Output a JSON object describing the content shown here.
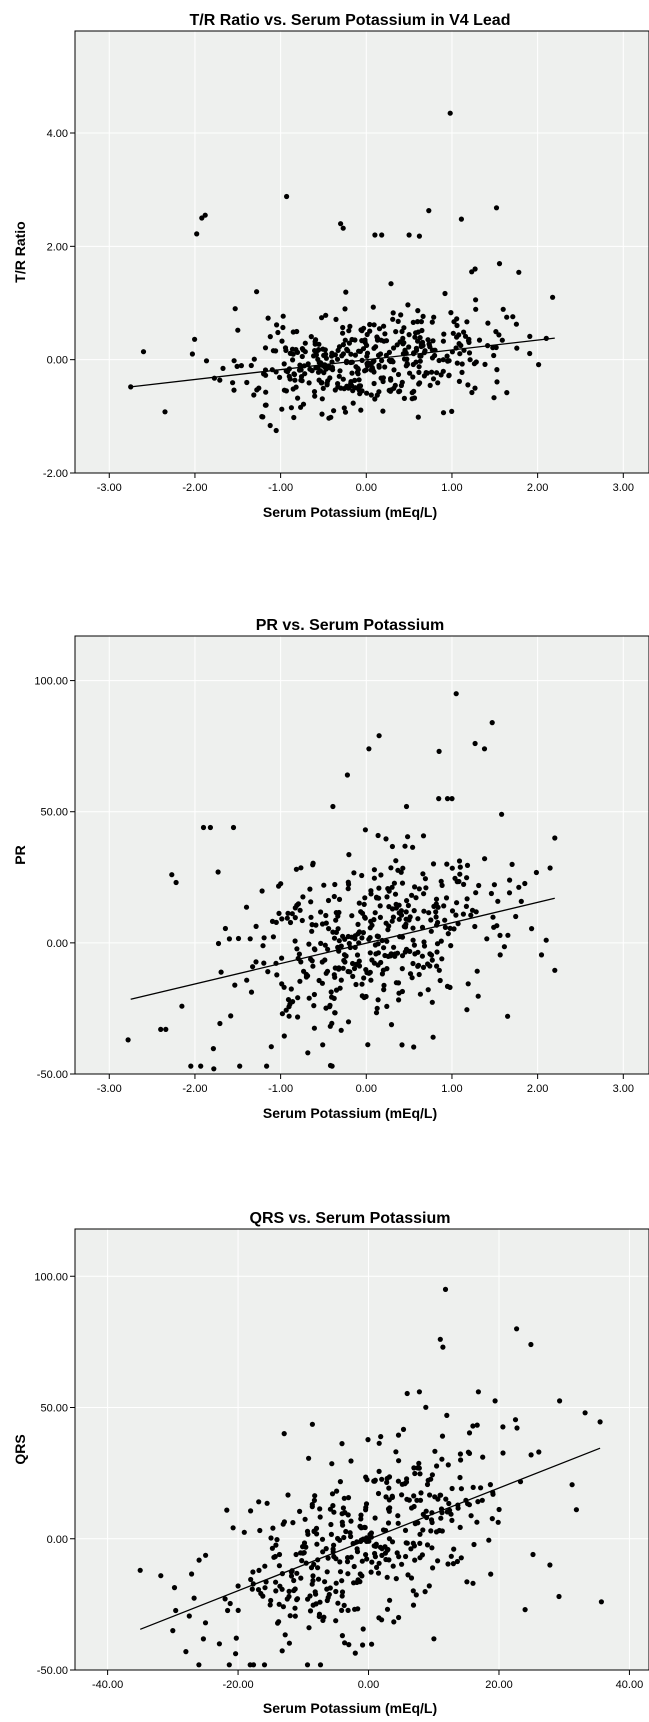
{
  "chart_data": [
    {
      "type": "scatter",
      "title": "T/R Ratio vs. Serum Potassium in V4 Lead",
      "xlabel": "Serum Potassium (mEq/L)",
      "ylabel": "T/R Ratio",
      "xlim": [
        -3.4,
        3.3
      ],
      "ylim": [
        -2.0,
        5.8
      ],
      "x_ticks": [
        -3,
        -2,
        -1,
        0,
        1,
        2,
        3
      ],
      "x_tick_labels": [
        "-3.00",
        "-2.00",
        "-1.00",
        "0.00",
        "1.00",
        "2.00",
        "3.00"
      ],
      "y_ticks": [
        -2,
        0,
        2,
        4
      ],
      "y_tick_labels": [
        "-2.00",
        "0.00",
        "2.00",
        "4.00"
      ],
      "grid": true,
      "fit_line": {
        "x": [
          -2.75,
          2.2
        ],
        "y": [
          -0.48,
          0.38
        ]
      },
      "seed": 11,
      "n_points": 430,
      "sx": 0.75,
      "slope": 0.17,
      "intercept": -0.02,
      "noise": 0.42,
      "special_points": [
        [
          0.98,
          4.35
        ],
        [
          -0.93,
          2.88
        ],
        [
          1.52,
          2.68
        ],
        [
          -1.88,
          2.55
        ],
        [
          -1.92,
          2.5
        ],
        [
          -1.98,
          2.22
        ],
        [
          0.73,
          2.63
        ],
        [
          -0.3,
          2.4
        ],
        [
          -0.27,
          2.32
        ],
        [
          0.1,
          2.2
        ],
        [
          0.18,
          2.2
        ],
        [
          0.5,
          2.2
        ],
        [
          0.62,
          2.18
        ],
        [
          1.11,
          2.48
        ],
        [
          1.23,
          1.55
        ],
        [
          1.27,
          1.6
        ],
        [
          -2.03,
          0.1
        ],
        [
          -2.35,
          -0.92
        ],
        [
          -2.75,
          -0.48
        ],
        [
          -1.53,
          0.9
        ],
        [
          -1.28,
          1.2
        ],
        [
          -1.5,
          0.52
        ]
      ],
      "x_clip": [
        -2.75,
        2.2
      ],
      "y_clip": [
        -1.25,
        2.3
      ]
    },
    {
      "type": "scatter",
      "title": "PR vs. Serum Potassium",
      "xlabel": "Serum Potassium (mEq/L)",
      "ylabel": "PR",
      "xlim": [
        -3.4,
        3.3
      ],
      "ylim": [
        -50.0,
        117.0
      ],
      "x_ticks": [
        -3,
        -2,
        -1,
        0,
        1,
        2,
        3
      ],
      "x_tick_labels": [
        "-3.00",
        "-2.00",
        "-1.00",
        "0.00",
        "1.00",
        "2.00",
        "3.00"
      ],
      "y_ticks": [
        -50,
        0,
        50,
        100
      ],
      "y_tick_labels": [
        "-50.00",
        "0.00",
        "50.00",
        "100.00"
      ],
      "grid": true,
      "fit_line": {
        "x": [
          -2.75,
          2.2
        ],
        "y": [
          -21.5,
          17.0
        ]
      },
      "seed": 23,
      "n_points": 430,
      "sx": 0.75,
      "slope": 7.8,
      "intercept": -0.1,
      "noise": 17.0,
      "special_points": [
        [
          1.05,
          95.0
        ],
        [
          1.47,
          84.0
        ],
        [
          1.27,
          76.0
        ],
        [
          1.38,
          74.0
        ],
        [
          0.85,
          73.0
        ],
        [
          0.03,
          74.0
        ],
        [
          0.15,
          79.0
        ],
        [
          -0.22,
          64.0
        ],
        [
          1.0,
          55.0
        ],
        [
          -0.39,
          52.0
        ],
        [
          0.47,
          52.0
        ],
        [
          1.58,
          49.0
        ],
        [
          -1.9,
          44.0
        ],
        [
          -1.82,
          44.0
        ],
        [
          -1.55,
          44.0
        ],
        [
          -2.27,
          26.0
        ],
        [
          -2.22,
          23.0
        ],
        [
          -2.78,
          -37.0
        ],
        [
          -1.78,
          -48.0
        ],
        [
          -2.4,
          -33.0
        ],
        [
          -2.34,
          -33.0
        ],
        [
          2.2,
          40.0
        ],
        [
          2.1,
          1.0
        ],
        [
          1.65,
          -28.0
        ],
        [
          -1.73,
          27.0
        ]
      ],
      "x_clip": [
        -2.75,
        2.2
      ],
      "y_clip": [
        -47.0,
        55.0
      ]
    },
    {
      "type": "scatter",
      "title": "QRS vs. Serum Potassium",
      "xlabel": "Serum Potassium (mEq/L)",
      "ylabel": "QRS",
      "xlim": [
        -45.0,
        43.0
      ],
      "ylim": [
        -50.0,
        118.0
      ],
      "x_ticks": [
        -40,
        -20,
        0,
        20,
        40
      ],
      "x_tick_labels": [
        "-40.00",
        "-20.00",
        "0.00",
        "20.00",
        "40.00"
      ],
      "y_ticks": [
        -50,
        0,
        50,
        100
      ],
      "y_tick_labels": [
        "-50.00",
        "0.00",
        "50.00",
        "100.00"
      ],
      "grid": true,
      "fit_line": {
        "x": [
          -35.0,
          35.5
        ],
        "y": [
          -34.5,
          34.5
        ]
      },
      "seed": 37,
      "n_points": 430,
      "sx": 11.0,
      "slope": 0.98,
      "intercept": 0.0,
      "noise": 17.0,
      "special_points": [
        [
          11.8,
          95.0
        ],
        [
          22.7,
          80.0
        ],
        [
          24.9,
          74.0
        ],
        [
          11.0,
          76.0
        ],
        [
          11.4,
          73.0
        ],
        [
          7.8,
          56.0
        ],
        [
          19.4,
          52.5
        ],
        [
          29.3,
          52.5
        ],
        [
          33.2,
          48.0
        ],
        [
          35.5,
          44.5
        ],
        [
          -35.0,
          -12.0
        ],
        [
          -30.0,
          -35.0
        ],
        [
          -28.0,
          -43.0
        ],
        [
          -26.0,
          -48.0
        ],
        [
          35.7,
          -24.0
        ],
        [
          29.2,
          -22.0
        ],
        [
          24.0,
          -27.0
        ],
        [
          27.8,
          -10.0
        ],
        [
          12.0,
          47.0
        ],
        [
          -20.0,
          -18.0
        ],
        [
          -25.0,
          -32.0
        ]
      ],
      "x_clip": [
        -33.0,
        36.0
      ],
      "y_clip": [
        -48.0,
        56.0
      ]
    }
  ]
}
